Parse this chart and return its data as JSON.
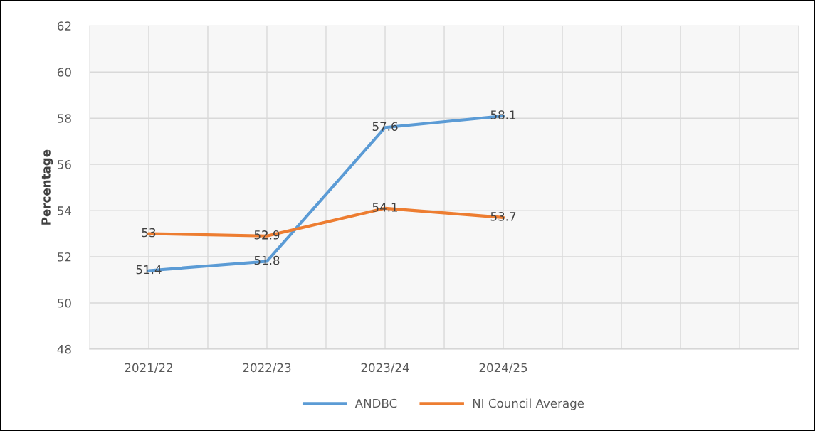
{
  "chart_data": {
    "type": "line",
    "ylabel": "Percentage",
    "categories": [
      "2021/22",
      "2022/23",
      "2023/24",
      "2024/25",
      null,
      null
    ],
    "series": [
      {
        "name": "ANDBC",
        "color": "#5b9bd5",
        "values": [
          51.4,
          51.8,
          57.6,
          58.1,
          null,
          null
        ]
      },
      {
        "name": "NI Council Average",
        "color": "#ed7d31",
        "values": [
          53,
          52.9,
          54.1,
          53.7,
          null,
          null
        ]
      }
    ],
    "ylim": [
      48,
      62
    ],
    "yticks": [
      48,
      50,
      52,
      54,
      56,
      58,
      60,
      62
    ],
    "grid": true,
    "legend": "bottom",
    "data_labels": true,
    "marker": "none",
    "line_style": "solid"
  }
}
